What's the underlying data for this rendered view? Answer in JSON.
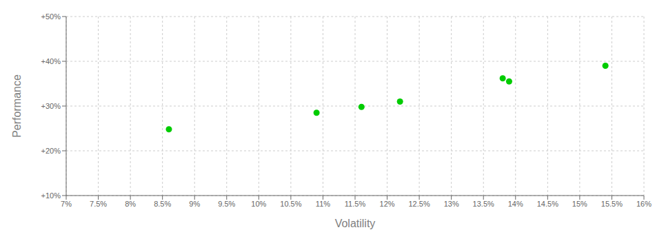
{
  "chart_data": {
    "type": "scatter",
    "xlabel": "Volatility",
    "ylabel": "Performance",
    "xlim": [
      0.07,
      0.16
    ],
    "ylim": [
      0.1,
      0.5
    ],
    "xticks": [
      {
        "value": 0.07,
        "label": "7%"
      },
      {
        "value": 0.075,
        "label": "7.5%"
      },
      {
        "value": 0.08,
        "label": "8%"
      },
      {
        "value": 0.085,
        "label": "8.5%"
      },
      {
        "value": 0.09,
        "label": "9%"
      },
      {
        "value": 0.095,
        "label": "9.5%"
      },
      {
        "value": 0.1,
        "label": "10%"
      },
      {
        "value": 0.105,
        "label": "10.5%"
      },
      {
        "value": 0.11,
        "label": "11%"
      },
      {
        "value": 0.115,
        "label": "11.5%"
      },
      {
        "value": 0.12,
        "label": "12%"
      },
      {
        "value": 0.125,
        "label": "12.5%"
      },
      {
        "value": 0.13,
        "label": "13%"
      },
      {
        "value": 0.135,
        "label": "13.5%"
      },
      {
        "value": 0.14,
        "label": "14%"
      },
      {
        "value": 0.145,
        "label": "14.5%"
      },
      {
        "value": 0.15,
        "label": "15%"
      },
      {
        "value": 0.155,
        "label": "15.5%"
      },
      {
        "value": 0.16,
        "label": "16%"
      }
    ],
    "yticks": [
      {
        "value": 0.1,
        "label": "+10%"
      },
      {
        "value": 0.2,
        "label": "+20%"
      },
      {
        "value": 0.3,
        "label": "+30%"
      },
      {
        "value": 0.4,
        "label": "+40%"
      },
      {
        "value": 0.5,
        "label": "+50%"
      }
    ],
    "x": [
      0.086,
      0.109,
      0.116,
      0.122,
      0.138,
      0.139,
      0.154
    ],
    "values": [
      0.248,
      0.285,
      0.298,
      0.31,
      0.362,
      0.355,
      0.39
    ],
    "color": "#00cc00",
    "grid": true
  }
}
